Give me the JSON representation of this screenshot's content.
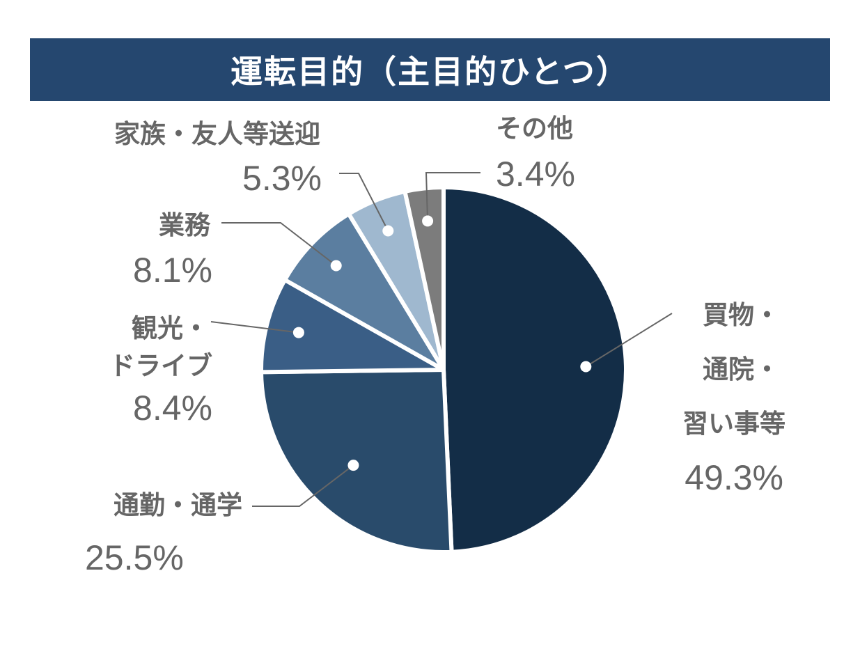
{
  "chart_data": {
    "type": "pie",
    "title": "運転目的（主目的ひとつ）",
    "slices": [
      {
        "label_lines": [
          "買物・",
          "通院・",
          "習い事等"
        ],
        "value_label": "49.3%",
        "value": 49.3,
        "color": "#132d47"
      },
      {
        "label_lines": [
          "通勤・通学"
        ],
        "value_label": "25.5%",
        "value": 25.5,
        "color": "#294b6b"
      },
      {
        "label_lines": [
          "観光・",
          "ドライブ"
        ],
        "value_label": "8.4%",
        "value": 8.4,
        "color": "#3a5e86"
      },
      {
        "label_lines": [
          "業務"
        ],
        "value_label": "8.1%",
        "value": 8.1,
        "color": "#5b7ea0"
      },
      {
        "label_lines": [
          "家族・友人等送迎"
        ],
        "value_label": "5.3%",
        "value": 5.3,
        "color": "#9fb8cf"
      },
      {
        "label_lines": [
          "その他"
        ],
        "value_label": "3.4%",
        "value": 3.4,
        "color": "#7c7c7c"
      }
    ]
  }
}
